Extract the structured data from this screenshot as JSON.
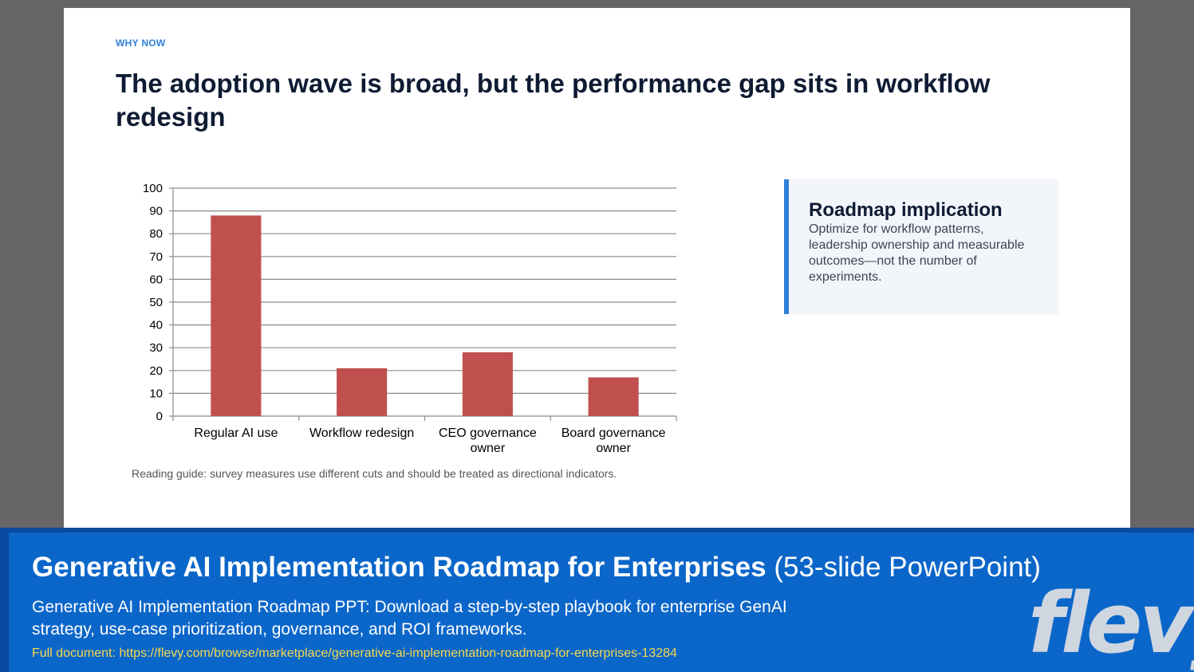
{
  "slide": {
    "eyebrow": "WHY NOW",
    "headline": "The adoption wave is broad, but the performance gap sits in workflow redesign",
    "note": "Reading guide: survey measures use different cuts and should be treated as directional indicators.",
    "callout": {
      "title": "Roadmap implication",
      "body": "Optimize for workflow patterns, leadership ownership and measurable outcomes—not the number of experiments."
    }
  },
  "chart_data": {
    "type": "bar",
    "categories": [
      "Regular AI use",
      "Workflow redesign",
      "CEO governance owner",
      "Board governance owner"
    ],
    "category_lines": [
      [
        "Regular AI use"
      ],
      [
        "Workflow redesign"
      ],
      [
        "CEO governance",
        "owner"
      ],
      [
        "Board governance",
        "owner"
      ]
    ],
    "values": [
      88,
      21,
      28,
      17
    ],
    "ylim": [
      0,
      100
    ],
    "yticks": [
      0,
      10,
      20,
      30,
      40,
      50,
      60,
      70,
      80,
      90,
      100
    ],
    "grid": true,
    "bar_color": "#c0504d",
    "title": "",
    "xlabel": "",
    "ylabel": ""
  },
  "banner": {
    "title_bold": "Generative AI Implementation Roadmap for Enterprises",
    "title_light": "(53-slide PowerPoint)",
    "description": "Generative AI Implementation Roadmap PPT: Download a step-by-step playbook for enterprise GenAI strategy, use-case prioritization, governance, and ROI frameworks.",
    "link": "Full document: https://flevy.com/browse/marketplace/generative-ai-implementation-roadmap-for-enterprises-13284",
    "logo": "flevy"
  }
}
